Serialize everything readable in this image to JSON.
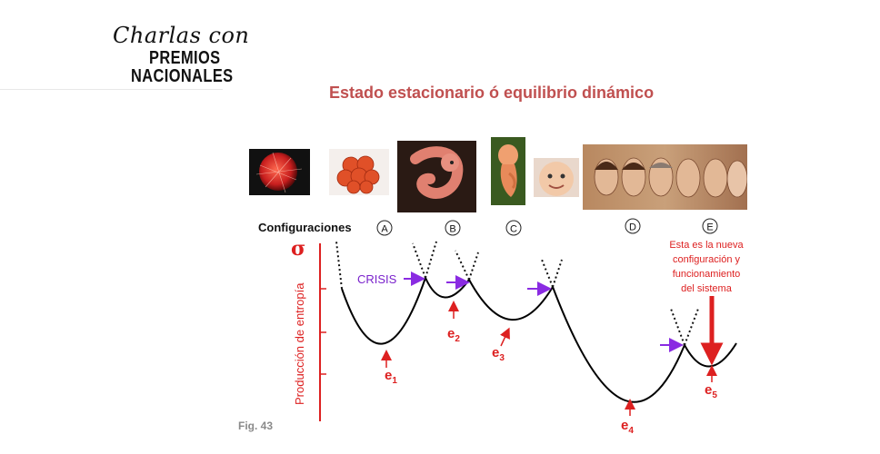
{
  "brand": {
    "script": "Charlas con",
    "line1": "PREMIOS",
    "line2": "NACIONALES"
  },
  "title": "Estado estacionario ó equilibrio dinámico",
  "configurations_label": "Configuraciones",
  "configurations": [
    "A",
    "B",
    "C",
    "D",
    "E"
  ],
  "y_axis": {
    "symbol": "σ",
    "label": "Producción  de entropía"
  },
  "crisis_label": "CRISIS",
  "equilibria": [
    {
      "letter": "e",
      "sub": "1"
    },
    {
      "letter": "e",
      "sub": "2"
    },
    {
      "letter": "e",
      "sub": "3"
    },
    {
      "letter": "e",
      "sub": "4"
    },
    {
      "letter": "e",
      "sub": "5"
    }
  ],
  "annotation": [
    "Esta es la nueva",
    "configuración y",
    "funcionamiento",
    "del sistema"
  ],
  "fig_label": "Fig. 43",
  "images": [
    {
      "name": "cell-image"
    },
    {
      "name": "morula-image"
    },
    {
      "name": "embryo-image"
    },
    {
      "name": "fetus-image"
    },
    {
      "name": "baby-image"
    },
    {
      "name": "aging-faces-image"
    }
  ],
  "colors": {
    "title": "#c05050",
    "red": "#dd2020",
    "crisis": "#7a22cc",
    "arrow": "#8a2be2",
    "curve": "#000000"
  }
}
